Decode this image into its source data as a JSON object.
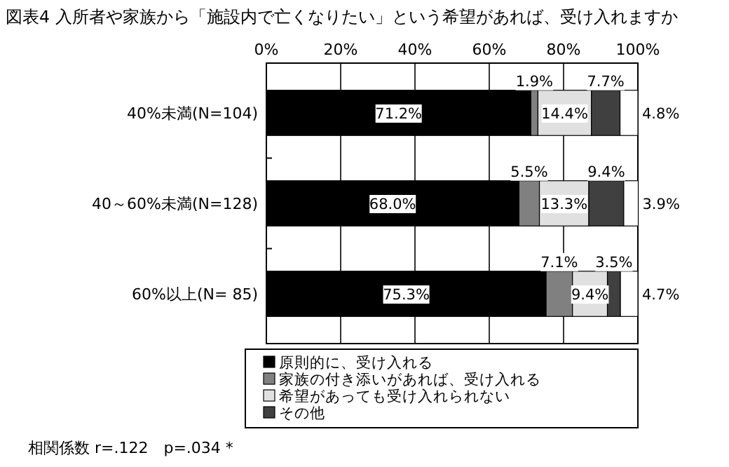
{
  "chart_data": {
    "type": "bar",
    "orientation": "horizontal",
    "stacked": true,
    "title": "図表4 入所者や家族から「施設内で亡くなりたい」という希望があれば、受け入れますか",
    "categories": [
      "40%未満(N=104)",
      "40～60%未満(N=128)",
      "60%以上(N=  85)"
    ],
    "series": [
      {
        "name": "原則的に、受け入れる",
        "color": "#000000",
        "values": [
          71.2,
          68.0,
          75.3
        ],
        "value_labels": [
          "71.2%",
          "68.0%",
          "75.3%"
        ]
      },
      {
        "name": "家族の付き添いがあれば、受け入れる",
        "color": "#808080",
        "values": [
          1.9,
          5.5,
          7.1
        ],
        "value_labels": [
          "1.9%",
          "5.5%",
          "7.1%"
        ]
      },
      {
        "name": "希望があっても受け入れられない",
        "color": "#e0e0e0",
        "values": [
          14.4,
          13.3,
          9.4
        ],
        "value_labels": [
          "14.4%",
          "13.3%",
          "9.4%"
        ]
      },
      {
        "name": "その他",
        "color": "#404040",
        "values": [
          7.7,
          9.4,
          3.5
        ],
        "value_labels": [
          "7.7%",
          "9.4%",
          "3.5%"
        ]
      },
      {
        "color": "#ffffff",
        "values": [
          4.8,
          3.9,
          4.7
        ],
        "value_labels": [
          "4.8%",
          "3.9%",
          "4.7%"
        ]
      }
    ],
    "xlim": [
      0,
      100
    ],
    "xticks": [
      {
        "value": 0,
        "label": "0%"
      },
      {
        "value": 20,
        "label": "20%"
      },
      {
        "value": 40,
        "label": "40%"
      },
      {
        "value": 60,
        "label": "60%"
      },
      {
        "value": 80,
        "label": "80%"
      },
      {
        "value": 100,
        "label": "100%"
      }
    ],
    "grid": "x",
    "legend": "bottom",
    "annotations": [
      "相関係数 r=.122　p=.034 *"
    ]
  }
}
